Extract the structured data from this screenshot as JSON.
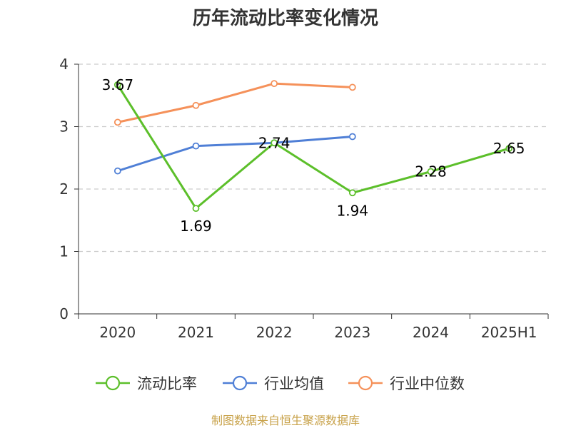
{
  "chart_data": {
    "type": "line",
    "title": "历年流动比率变化情况",
    "categories": [
      "2020",
      "2021",
      "2022",
      "2023",
      "2024",
      "2025H1"
    ],
    "ylim": [
      0,
      4
    ],
    "yticks": [
      "0",
      "1",
      "2",
      "3",
      "4"
    ],
    "grid": true,
    "legend_position": "bottom",
    "series": [
      {
        "name": "流动比率",
        "color": "#5cbf2a",
        "values": [
          3.67,
          1.69,
          2.74,
          1.94,
          2.28,
          2.65
        ],
        "labels": [
          "3.67",
          "1.69",
          "2.74",
          "1.94",
          "2.28",
          "2.65"
        ]
      },
      {
        "name": "行业均值",
        "color": "#4f7fd6",
        "values": [
          2.29,
          2.69,
          2.74,
          2.84,
          null,
          null
        ]
      },
      {
        "name": "行业中位数",
        "color": "#f5915a",
        "values": [
          3.07,
          3.34,
          3.69,
          3.63,
          null,
          null
        ]
      }
    ]
  },
  "footer": {
    "source": "制图数据来自恒生聚源数据库"
  }
}
